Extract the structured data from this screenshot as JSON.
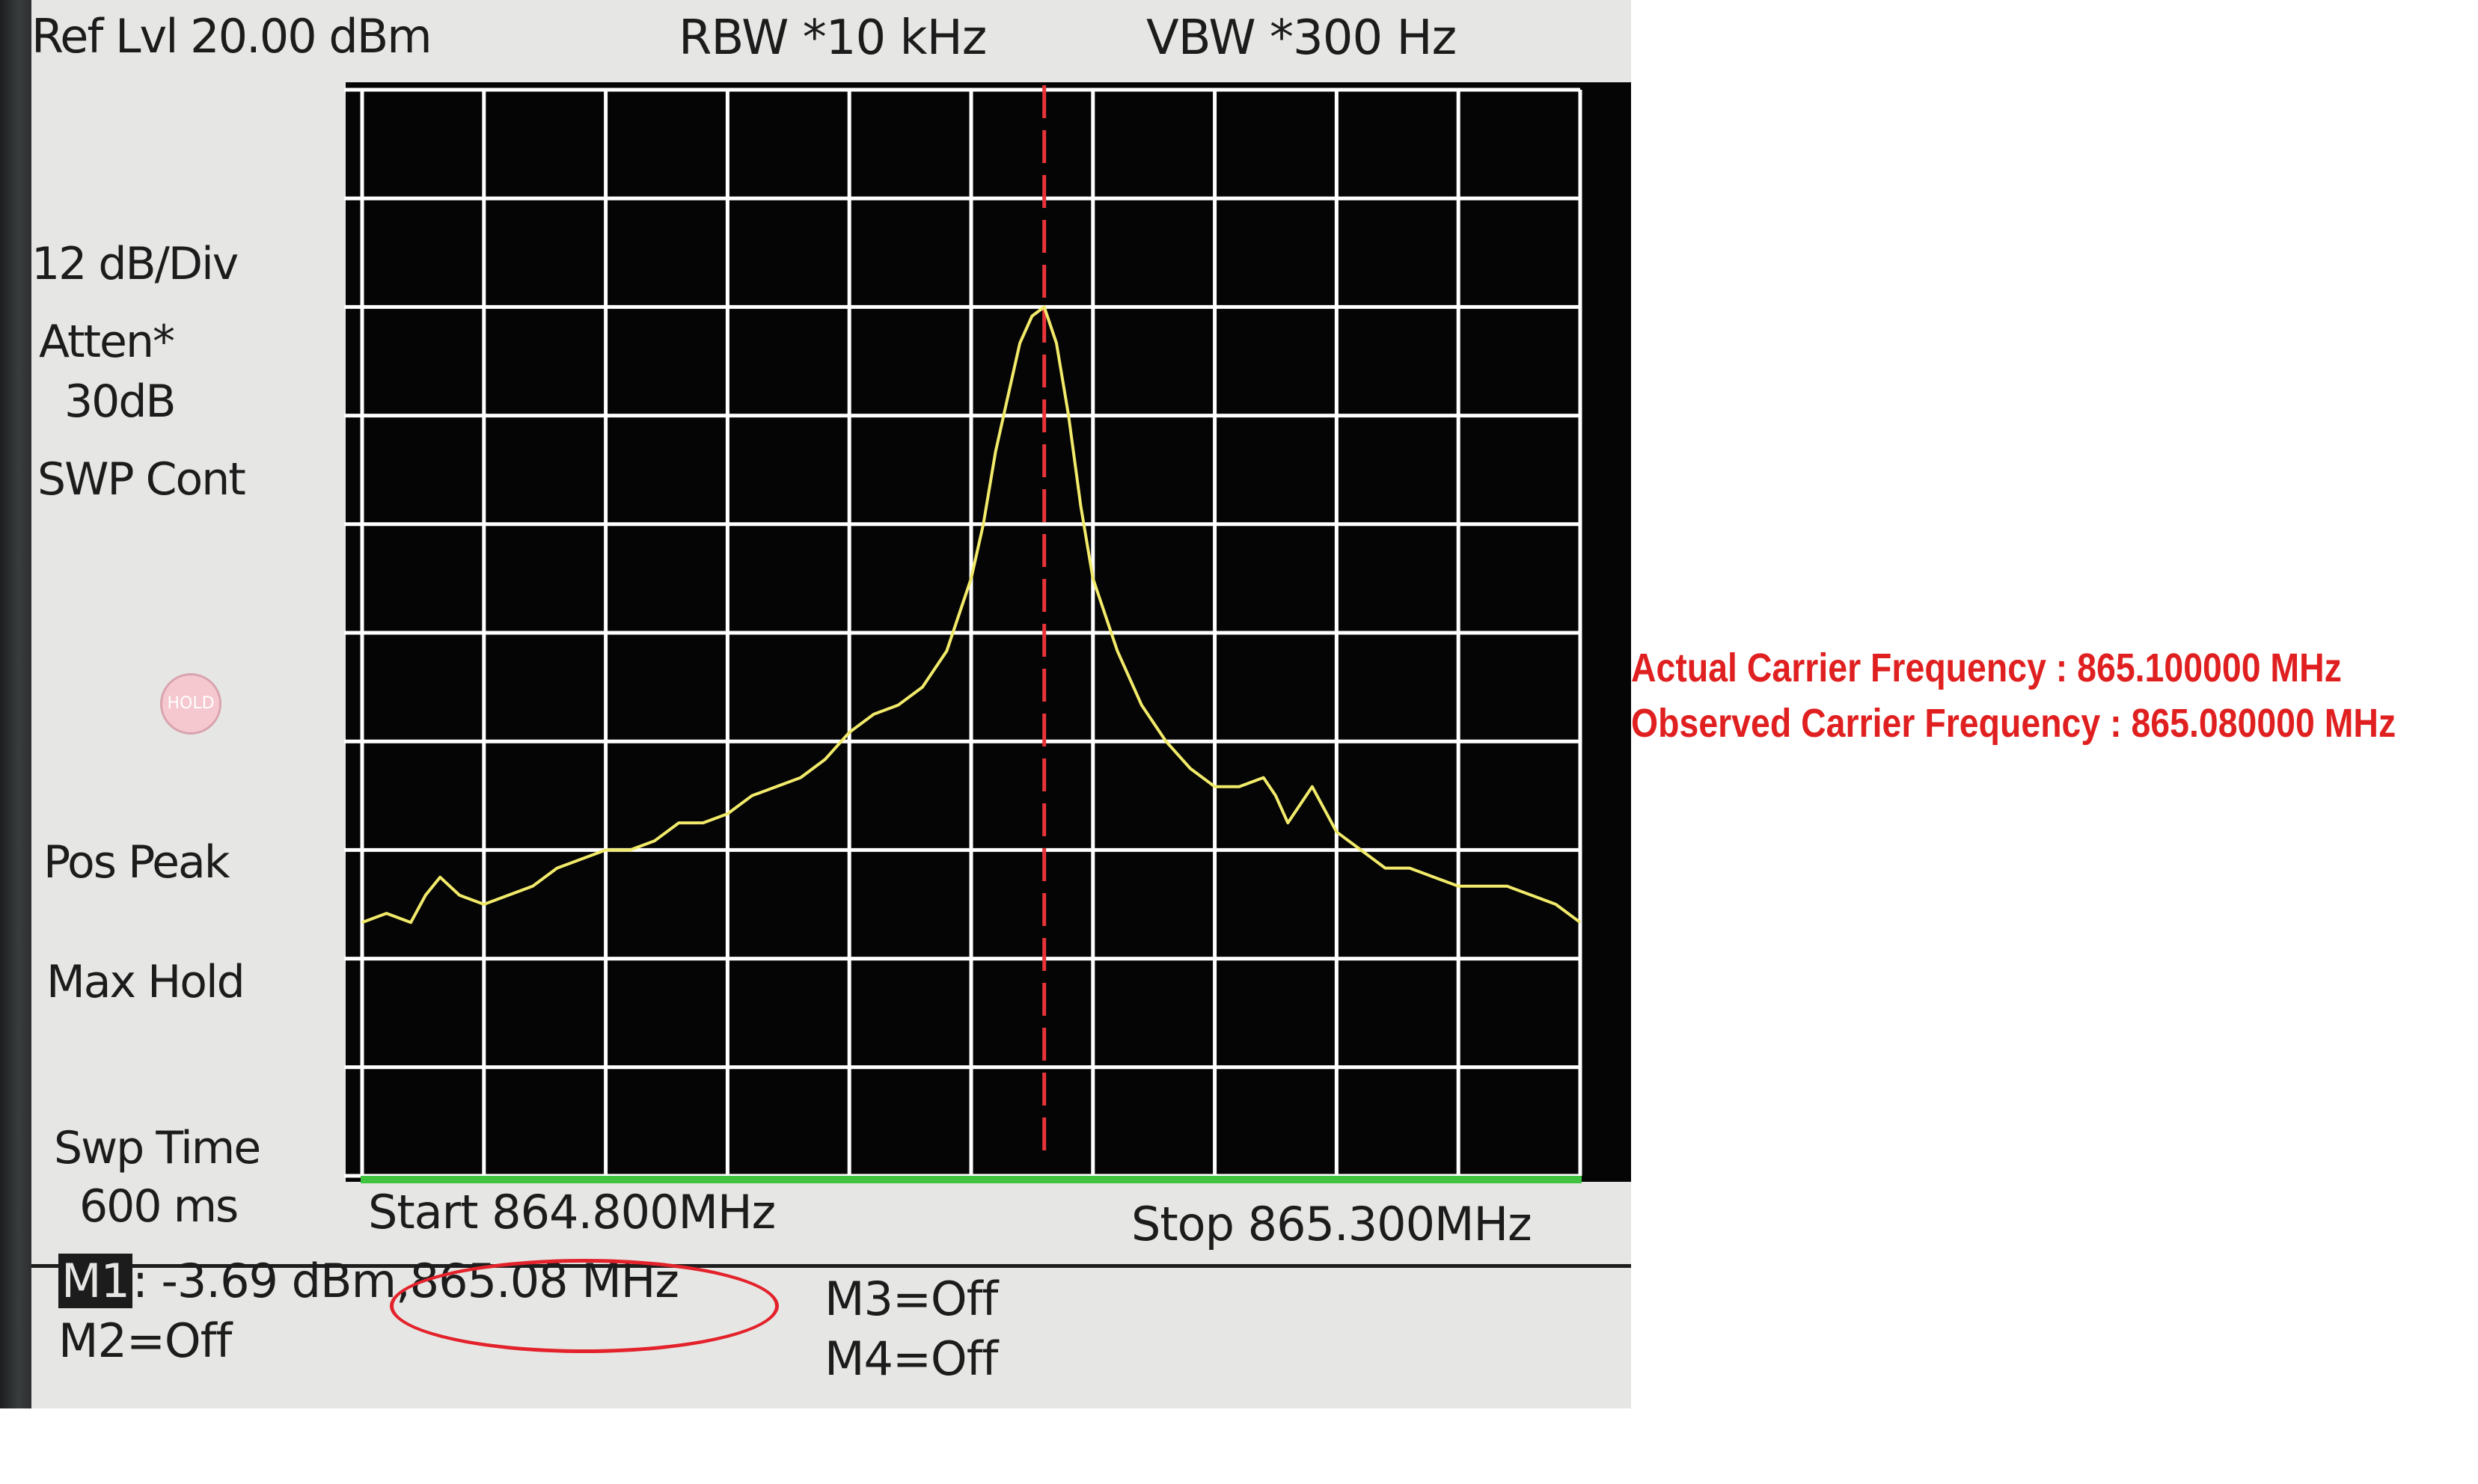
{
  "analyzer": {
    "ref_level": "Ref Lvl 20.00 dBm",
    "rbw": "RBW  *10 kHz",
    "vbw": "VBW  *300 Hz",
    "scale": "12 dB/Div",
    "atten_label": "Atten*",
    "atten_value": "30dB",
    "sweep_mode": "SWP Cont",
    "hold_badge": "HOLD",
    "detector": "Pos Peak",
    "trace_mode": "Max Hold",
    "swp_time_label": "Swp Time",
    "swp_time_value": "600 ms",
    "start": "Start  864.800MHz",
    "stop": "Stop  865.300MHz"
  },
  "markers": {
    "m1_tag": "M1",
    "m1_readout": ": -3.69 dBm,865.08 MHz",
    "m2": "M2=Off",
    "m3": "M3=Off",
    "m4": "M4=Off"
  },
  "annotations": {
    "actual": "Actual Carrier Frequency : 865.100000 MHz",
    "observed": "Observed Carrier Frequency : 865.080000 MHz"
  },
  "colors": {
    "trace": "#f2ea6a",
    "marker_line": "#e8343a",
    "grid": "#ffffff",
    "baseline": "#3fc23f",
    "annotation": "#e02020"
  },
  "chart_data": {
    "type": "line",
    "x_start_mhz": 864.8,
    "x_stop_mhz": 865.3,
    "ref_level_dbm": 20,
    "db_per_div": 12,
    "marker_mhz": 865.08,
    "marker_dbm": -3.69,
    "series": [
      {
        "x": [
          864.8,
          864.81,
          864.82,
          864.826,
          864.832,
          864.84,
          864.85,
          864.86,
          864.87,
          864.88,
          864.89,
          864.9,
          864.91,
          864.92,
          864.93,
          864.94,
          864.95,
          864.96,
          864.97,
          864.98,
          864.99,
          865.0,
          865.01,
          865.02,
          865.03,
          865.04,
          865.045,
          865.05,
          865.055,
          865.06,
          865.065,
          865.07,
          865.075,
          865.08,
          865.085,
          865.09,
          865.095,
          865.1,
          865.11,
          865.12,
          865.13,
          865.14,
          865.15,
          865.16,
          865.17,
          865.175,
          865.18,
          865.19,
          865.2,
          865.21,
          865.22,
          865.23,
          865.24,
          865.25,
          865.26,
          865.27,
          865.28,
          865.29,
          865.3
        ],
        "y": [
          -72,
          -71,
          -72,
          -69,
          -67,
          -69,
          -70,
          -69,
          -68,
          -66,
          -65,
          -64,
          -64,
          -63,
          -61,
          -61,
          -60,
          -58,
          -57,
          -56,
          -54,
          -51,
          -49,
          -48,
          -46,
          -42,
          -38,
          -34,
          -28,
          -20,
          -14,
          -8,
          -5,
          -4,
          -8,
          -16,
          -26,
          -34,
          -42,
          -48,
          -52,
          -55,
          -57,
          -57,
          -56,
          -58,
          -61,
          -57,
          -62,
          -64,
          -66,
          -66,
          -67,
          -68,
          -68,
          -68,
          -69,
          -70,
          -72
        ]
      }
    ]
  }
}
